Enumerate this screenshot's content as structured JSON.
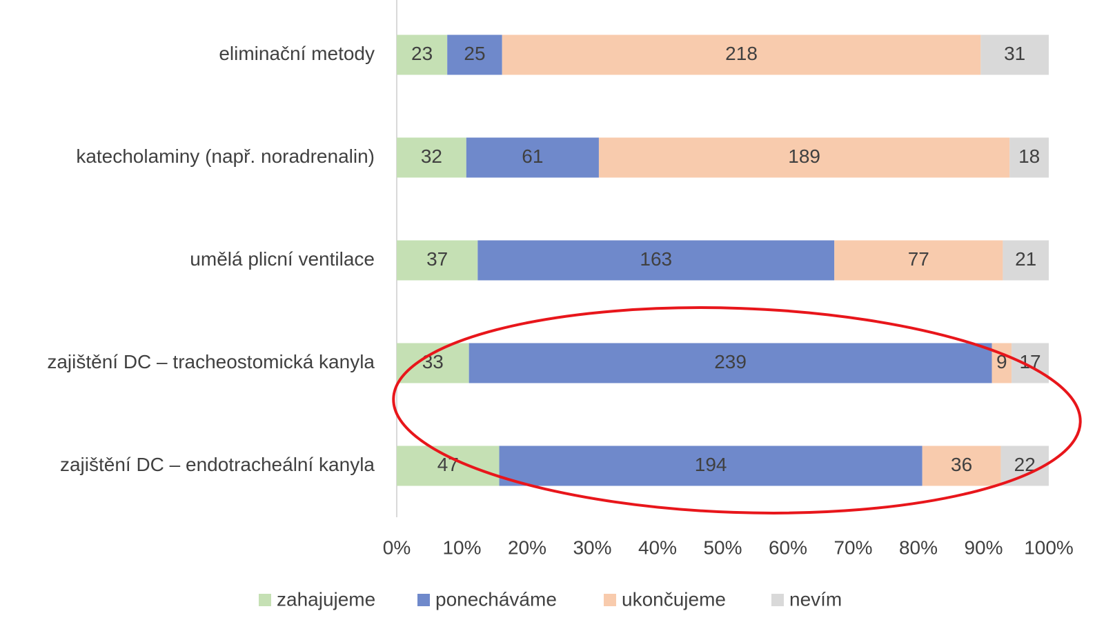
{
  "chart_data": {
    "type": "bar",
    "orientation": "horizontal",
    "stacked": "percent",
    "categories": [
      "eliminační metody",
      "katecholaminy (např. noradrenalin)",
      "umělá plicní ventilace",
      "zajištění DC – tracheostomická kanyla",
      "zajištění DC – endotracheální kanyla"
    ],
    "series": [
      {
        "name": "zahajujeme",
        "color": "#c5e0b4",
        "values": [
          23,
          32,
          37,
          33,
          47
        ]
      },
      {
        "name": "ponecháváme",
        "color": "#6f89cb",
        "values": [
          25,
          61,
          163,
          239,
          194
        ]
      },
      {
        "name": "ukončujeme",
        "color": "#f8cbad",
        "values": [
          218,
          189,
          77,
          9,
          36
        ]
      },
      {
        "name": "nevím",
        "color": "#d9d9d9",
        "values": [
          31,
          18,
          21,
          17,
          22
        ]
      }
    ],
    "xlim": [
      0,
      100
    ],
    "xticks": [
      {
        "value": 0,
        "label": "0%"
      },
      {
        "value": 10,
        "label": "10%"
      },
      {
        "value": 20,
        "label": "20%"
      },
      {
        "value": 30,
        "label": "30%"
      },
      {
        "value": 40,
        "label": "40%"
      },
      {
        "value": 50,
        "label": "50%"
      },
      {
        "value": 60,
        "label": "60%"
      },
      {
        "value": 70,
        "label": "70%"
      },
      {
        "value": 80,
        "label": "80%"
      },
      {
        "value": 90,
        "label": "90%"
      },
      {
        "value": 100,
        "label": "100%"
      }
    ],
    "legend": "bottom"
  }
}
